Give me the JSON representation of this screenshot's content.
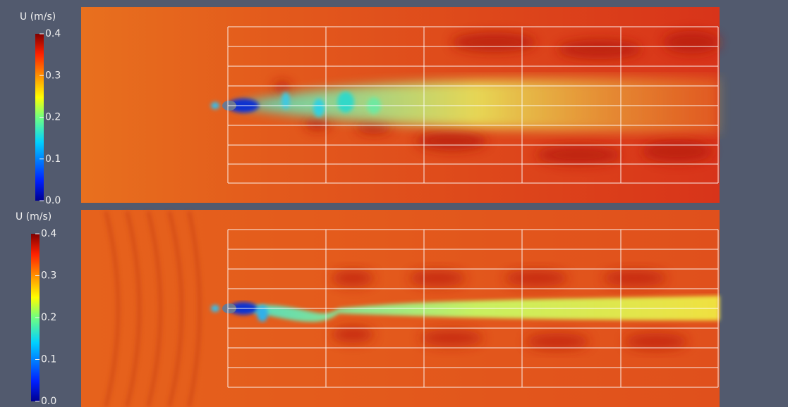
{
  "panels": [
    {
      "colorbar": {
        "title": "U (m/s)",
        "ticks": [
          {
            "value": 0,
            "label": "0.0"
          },
          {
            "value": 0.1,
            "label": "0.1"
          },
          {
            "value": 0.2,
            "label": "0.2"
          },
          {
            "value": 0.3,
            "label": "0.3"
          },
          {
            "value": 0.4,
            "label": "0.4"
          }
        ]
      }
    },
    {
      "colorbar": {
        "title": "U (m/s)",
        "ticks": [
          {
            "value": 0,
            "label": "0.0"
          },
          {
            "value": 0.1,
            "label": "0.1"
          },
          {
            "value": 0.2,
            "label": "0.2"
          },
          {
            "value": 0.3,
            "label": "0.3"
          },
          {
            "value": 0.4,
            "label": "0.4"
          }
        ]
      }
    }
  ]
}
